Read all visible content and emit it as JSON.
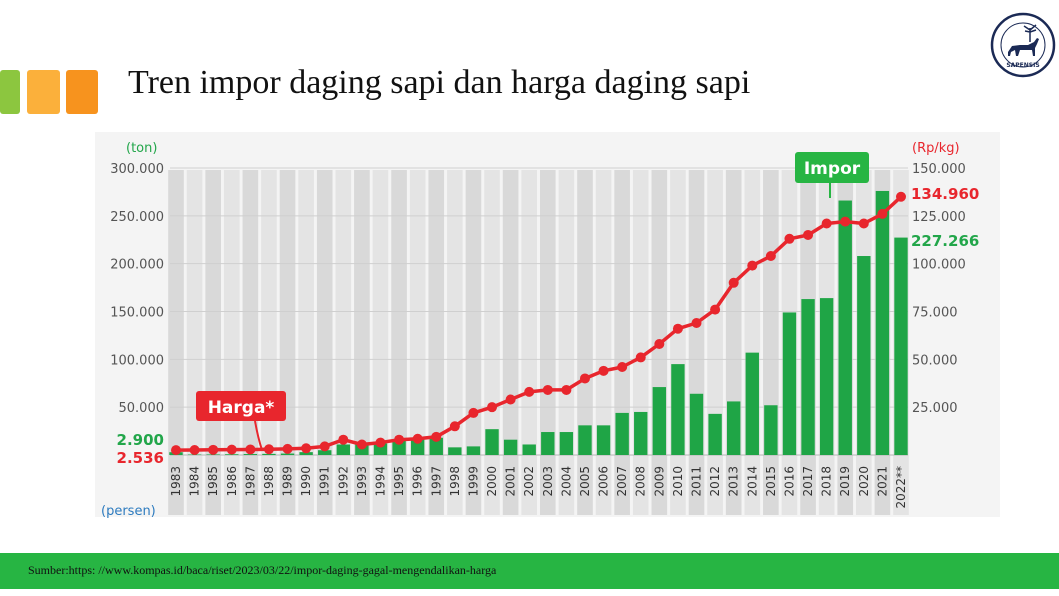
{
  "slide": {
    "title": "Tren impor daging sapi dan harga daging sapi",
    "source": "Sumber:https:  //www.kompas.id/baca/riset/2023/03/22/impor-daging-gagal-mengendalikan-harga",
    "logo_text": "SAPENSIS",
    "colors": {
      "accent_green": "#27b543",
      "deco1": "#8cc63f",
      "deco2": "#fbb03b",
      "deco3": "#f7931e"
    }
  },
  "chart_data": {
    "type": "bar",
    "categories": [
      "1983",
      "1984",
      "1985",
      "1986",
      "1987",
      "1988",
      "1989",
      "1990",
      "1991",
      "1992",
      "1993",
      "1994",
      "1995",
      "1996",
      "1997",
      "1998",
      "1999",
      "2000",
      "2001",
      "2002",
      "2003",
      "2004",
      "2005",
      "2006",
      "2007",
      "2008",
      "2009",
      "2010",
      "2011",
      "2012",
      "2013",
      "2014",
      "2015",
      "2016",
      "2017",
      "2018",
      "2019",
      "2020",
      "2021",
      "2022**"
    ],
    "y_left": {
      "label": "(ton)",
      "ylim": [
        0,
        300000
      ],
      "ticks": [
        "300.000",
        "250.000",
        "200.000",
        "150.000",
        "100.000",
        "50.000"
      ],
      "tick_values": [
        300000,
        250000,
        200000,
        150000,
        100000,
        50000
      ]
    },
    "y_right": {
      "label": "(Rp/kg)",
      "ylim": [
        0,
        150000
      ],
      "ticks": [
        "150.000",
        "125.000",
        "100.000",
        "75.000",
        "50.000",
        "25.000"
      ],
      "tick_values": [
        150000,
        125000,
        100000,
        75000,
        50000,
        25000
      ]
    },
    "bottom_label": "(persen)",
    "series": [
      {
        "name": "Impor",
        "type": "bar",
        "axis": "left",
        "color": "#1fa546",
        "values": [
          2900,
          500,
          600,
          800,
          1000,
          1200,
          1500,
          3000,
          5000,
          11000,
          11000,
          12000,
          16000,
          17000,
          18000,
          8000,
          9000,
          27000,
          16000,
          11000,
          24000,
          24000,
          31000,
          31000,
          44000,
          45000,
          71000,
          95000,
          64000,
          43000,
          56000,
          107000,
          52000,
          149000,
          163000,
          164000,
          266000,
          208000,
          276000,
          227266
        ]
      },
      {
        "name": "Harga*",
        "type": "line",
        "axis": "right",
        "color": "#e8262d",
        "values": [
          2536,
          2600,
          2700,
          2800,
          2900,
          3000,
          3200,
          3500,
          4500,
          8000,
          5500,
          6500,
          8000,
          8500,
          9500,
          15000,
          22000,
          25000,
          29000,
          33000,
          34000,
          34000,
          40000,
          44000,
          46000,
          51000,
          58000,
          66000,
          69000,
          76000,
          90000,
          99000,
          104000,
          113000,
          115000,
          121000,
          122000,
          121000,
          126000,
          134960
        ]
      }
    ],
    "annotations": {
      "left_first_value": "2.900",
      "left_first_value_second": "2.536",
      "last_price": "134.960",
      "last_import": "227.266"
    },
    "legend": [
      "Impor",
      "Harga*"
    ],
    "grid": true
  }
}
